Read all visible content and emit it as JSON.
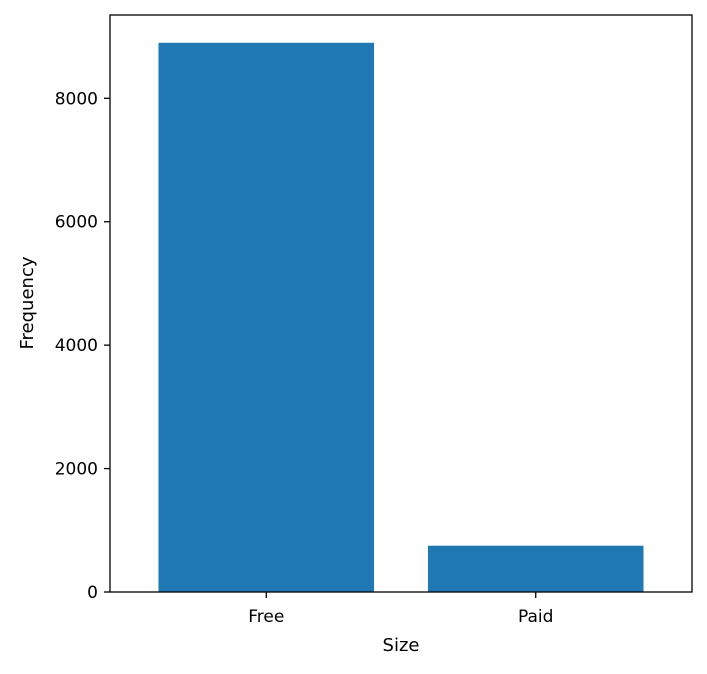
{
  "chart_data": {
    "type": "bar",
    "categories": [
      "Free",
      "Paid"
    ],
    "values": [
      8900,
      750
    ],
    "title": "",
    "xlabel": "Size",
    "ylabel": "Frequency",
    "ylim": [
      0,
      9350
    ],
    "yticks": [
      0,
      2000,
      4000,
      6000,
      8000
    ],
    "grid": false,
    "bar_color": "#1f77b4"
  }
}
